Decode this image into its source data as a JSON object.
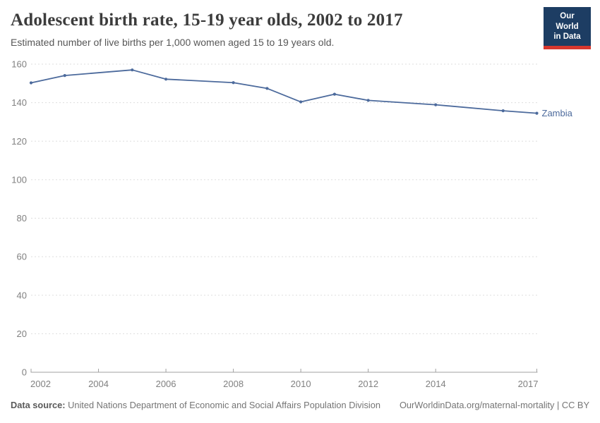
{
  "header": {
    "title": "Adolescent birth rate, 15-19 year olds, 2002 to 2017",
    "subtitle": "Estimated number of live births per 1,000 women aged 15 to 19 years old.",
    "logo_line1": "Our World",
    "logo_line2": "in Data"
  },
  "chart_data": {
    "type": "line",
    "title": "Adolescent birth rate, 15-19 year olds, 2002 to 2017",
    "xlabel": "",
    "ylabel": "",
    "xlim": [
      2002,
      2017
    ],
    "ylim": [
      0,
      160
    ],
    "xticks": [
      2002,
      2004,
      2006,
      2008,
      2010,
      2012,
      2014,
      2017
    ],
    "yticks": [
      0,
      20,
      40,
      60,
      80,
      100,
      120,
      140,
      160
    ],
    "grid": "horizontal-dashed",
    "legend_position": "end-of-line",
    "series": [
      {
        "name": "Zambia",
        "color": "#4C6A9C",
        "x": [
          2002,
          2003,
          2005,
          2006,
          2008,
          2009,
          2010,
          2011,
          2012,
          2014,
          2016,
          2017
        ],
        "y": [
          150.3,
          154.1,
          157.0,
          152.2,
          150.4,
          147.4,
          140.4,
          144.4,
          141.2,
          138.9,
          135.8,
          134.5
        ]
      }
    ]
  },
  "footer": {
    "datasource_label": "Data source:",
    "datasource_text": "United Nations Department of Economic and Social Affairs Population Division",
    "attribution": "OurWorldinData.org/maternal-mortality | CC BY"
  },
  "colors": {
    "line": "#4C6A9C",
    "grid": "#dddddd",
    "axis": "#a1a1a1",
    "tick_label": "#818181",
    "title": "#3c3c3c",
    "subtitle": "#575757",
    "footer": "#757575",
    "logo_bg": "#1d3d63",
    "logo_bar": "#d7372e"
  }
}
